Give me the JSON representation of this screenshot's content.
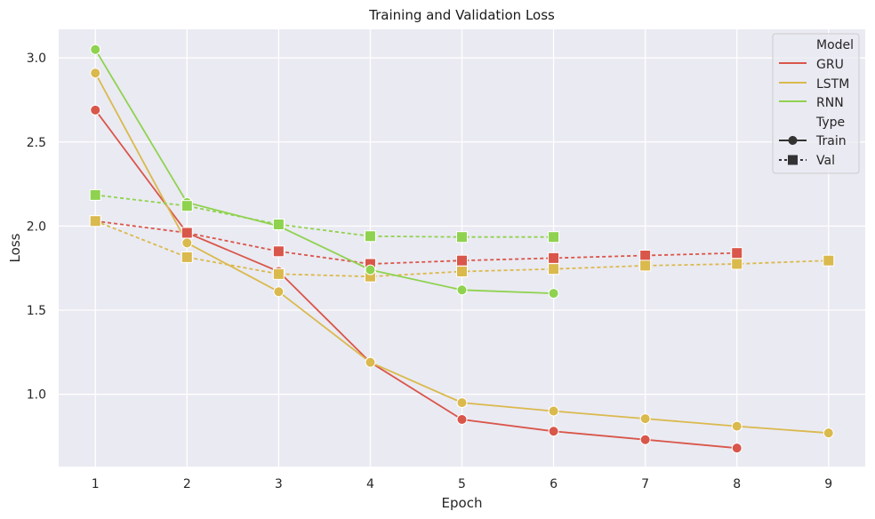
{
  "chart_data": {
    "type": "line",
    "title": "Training and Validation Loss",
    "xlabel": "Epoch",
    "ylabel": "Loss",
    "xlim": [
      0.6,
      9.4
    ],
    "ylim": [
      0.57,
      3.17
    ],
    "xticks": [
      1,
      2,
      3,
      4,
      5,
      6,
      7,
      8,
      9
    ],
    "yticks": [
      1.0,
      1.5,
      2.0,
      2.5,
      3.0
    ],
    "ytick_labels": [
      "1.0",
      "1.5",
      "2.0",
      "2.5",
      "3.0"
    ],
    "grid": true,
    "legend_position": "top-right",
    "colors": {
      "GRU": "#d9564a",
      "LSTM": "#dab94d",
      "RNN": "#8fd24f",
      "background": "#eaeaf2",
      "grid": "#ffffff"
    },
    "series": [
      {
        "name": "GRU Train",
        "model": "GRU",
        "type": "Train",
        "x": [
          1,
          2,
          3,
          4,
          5,
          6,
          7,
          8
        ],
        "values": [
          2.69,
          1.96,
          1.73,
          1.19,
          0.85,
          0.78,
          0.73,
          0.68
        ]
      },
      {
        "name": "GRU Val",
        "model": "GRU",
        "type": "Val",
        "x": [
          1,
          2,
          3,
          4,
          5,
          6,
          7,
          8
        ],
        "values": [
          2.03,
          1.96,
          1.85,
          1.775,
          1.795,
          1.81,
          1.825,
          1.84
        ]
      },
      {
        "name": "LSTM Train",
        "model": "LSTM",
        "type": "Train",
        "x": [
          1,
          2,
          3,
          4,
          5,
          6,
          7,
          8,
          9
        ],
        "values": [
          2.91,
          1.9,
          1.61,
          1.19,
          0.95,
          0.9,
          0.855,
          0.81,
          0.77
        ]
      },
      {
        "name": "LSTM Val",
        "model": "LSTM",
        "type": "Val",
        "x": [
          1,
          2,
          3,
          4,
          5,
          6,
          7,
          8,
          9
        ],
        "values": [
          2.03,
          1.815,
          1.715,
          1.7,
          1.73,
          1.745,
          1.765,
          1.775,
          1.795
        ]
      },
      {
        "name": "RNN Train",
        "model": "RNN",
        "type": "Train",
        "x": [
          1,
          2,
          3,
          4,
          5,
          6
        ],
        "values": [
          3.05,
          2.14,
          2.0,
          1.74,
          1.62,
          1.6
        ]
      },
      {
        "name": "RNN Val",
        "model": "RNN",
        "type": "Val",
        "x": [
          1,
          2,
          3,
          4,
          5,
          6
        ],
        "values": [
          2.185,
          2.12,
          2.01,
          1.94,
          1.935,
          1.935
        ]
      }
    ],
    "legend": {
      "model_header": "Model",
      "models": [
        "GRU",
        "LSTM",
        "RNN"
      ],
      "type_header": "Type",
      "types": [
        "Train",
        "Val"
      ]
    }
  }
}
